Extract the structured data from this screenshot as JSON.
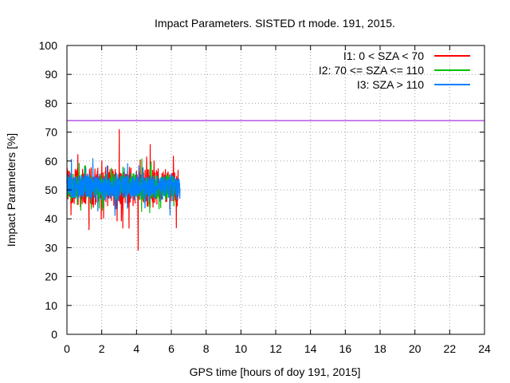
{
  "chart_data": {
    "type": "line",
    "title": "Impact Parameters. SISTED rt mode. 191, 2015.",
    "xlabel": "GPS time [hours of doy 191, 2015]",
    "ylabel": "Impact Parameters [%]",
    "xlim": [
      0,
      24
    ],
    "ylim": [
      0,
      100
    ],
    "x_ticks": [
      0,
      2,
      4,
      6,
      8,
      10,
      12,
      14,
      16,
      18,
      20,
      22,
      24
    ],
    "y_ticks": [
      0,
      10,
      20,
      30,
      40,
      50,
      60,
      70,
      80,
      90,
      100
    ],
    "grid": true,
    "legend_position": "top-right",
    "reference_line": {
      "y": 74,
      "color": "#9400d3"
    },
    "series": [
      {
        "name": "I1: 0 < SZA < 70",
        "color": "#ff0000",
        "x_range": [
          0,
          6.4
        ],
        "mean": 51,
        "spread": 6,
        "min": 29,
        "max": 71
      },
      {
        "name": "I2: 70 <= SZA <= 110",
        "color": "#00c000",
        "x_range": [
          0,
          6.2
        ],
        "mean": 51,
        "spread": 4,
        "min": 42,
        "max": 62
      },
      {
        "name": "I3: SZA > 110",
        "color": "#0080ff",
        "x_range": [
          0,
          6.5
        ],
        "mean": 51,
        "spread": 4,
        "min": 36,
        "max": 62
      }
    ]
  }
}
